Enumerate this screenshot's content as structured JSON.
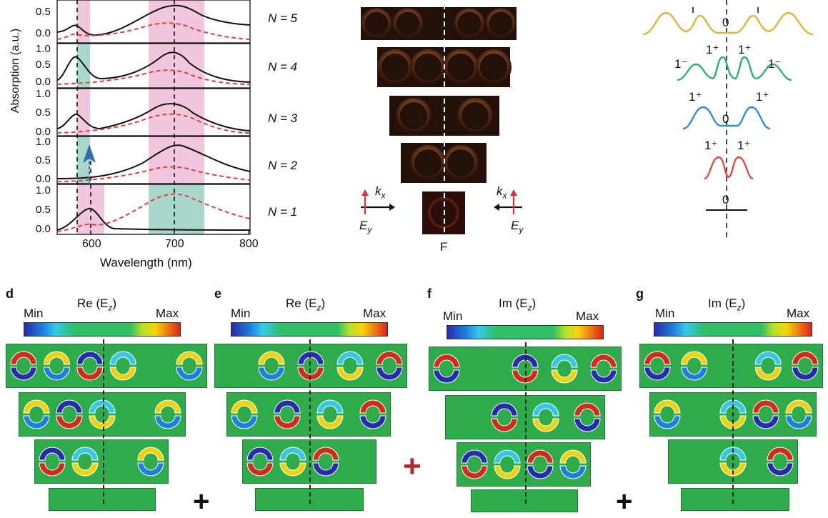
{
  "panel_a": {
    "rows": [
      {
        "label": "N = 5",
        "yticks": [
          "0.5",
          "0.0"
        ]
      },
      {
        "label": "N = 4",
        "yticks": [
          "1.0",
          "0.5",
          "0.0"
        ]
      },
      {
        "label": "N = 3",
        "yticks": [
          "1.0",
          "0.5",
          "0.0"
        ]
      },
      {
        "label": "N = 2",
        "yticks": [
          "1.0",
          "0.5",
          "0.0"
        ]
      },
      {
        "label": "N = 1",
        "yticks": [
          "1.0",
          "0.5",
          "0.0"
        ]
      }
    ],
    "ylabel": "Absorption (a.u.)",
    "xlabel": "Wavelength (nm)",
    "xticks": [
      "600",
      "700",
      "800"
    ],
    "colors": {
      "solid": "#111111",
      "dashed": "#e04040",
      "pink_band": "#f2c6dc",
      "teal_band": "#a8d8cc",
      "arrow": "#2e6fa8"
    }
  },
  "panel_b": {
    "label": "F",
    "left_k": "k",
    "left_k_sub": "x",
    "left_e": "E",
    "left_e_sub": "y",
    "right_k": "k",
    "right_k_sub": "x",
    "right_e": "E",
    "right_e_sub": "y"
  },
  "panel_c": {
    "levels": [
      {
        "labels": [
          "0"
        ],
        "color": "#e0b43a"
      },
      {
        "labels": [
          "1⁺",
          "1⁺",
          "1⁻",
          "1⁻"
        ],
        "color": "#2fae74"
      },
      {
        "labels": [
          "1⁺",
          "1⁺",
          "0"
        ],
        "color": "#2e8fd0"
      },
      {
        "labels": [
          "1⁺",
          "1⁺"
        ],
        "color": "#d9503c"
      },
      {
        "labels": [
          "0"
        ],
        "color": "#111111"
      }
    ]
  },
  "field_panels": [
    {
      "letter": "d",
      "title": "Re (E",
      "sub": "z",
      "min": "Min",
      "max": "Max"
    },
    {
      "letter": "e",
      "title": "Re (E",
      "sub": "z",
      "min": "Min",
      "max": "Max"
    },
    {
      "letter": "f",
      "title": "Im (E",
      "sub": "z",
      "min": "Min",
      "max": "Max"
    },
    {
      "letter": "g",
      "title": "Im (E",
      "sub": "z",
      "min": "Min",
      "max": "Max"
    }
  ],
  "operators": [
    "+",
    "+",
    "+"
  ],
  "operator_colors": [
    "#111111",
    "#b02a2a",
    "#111111"
  ]
}
